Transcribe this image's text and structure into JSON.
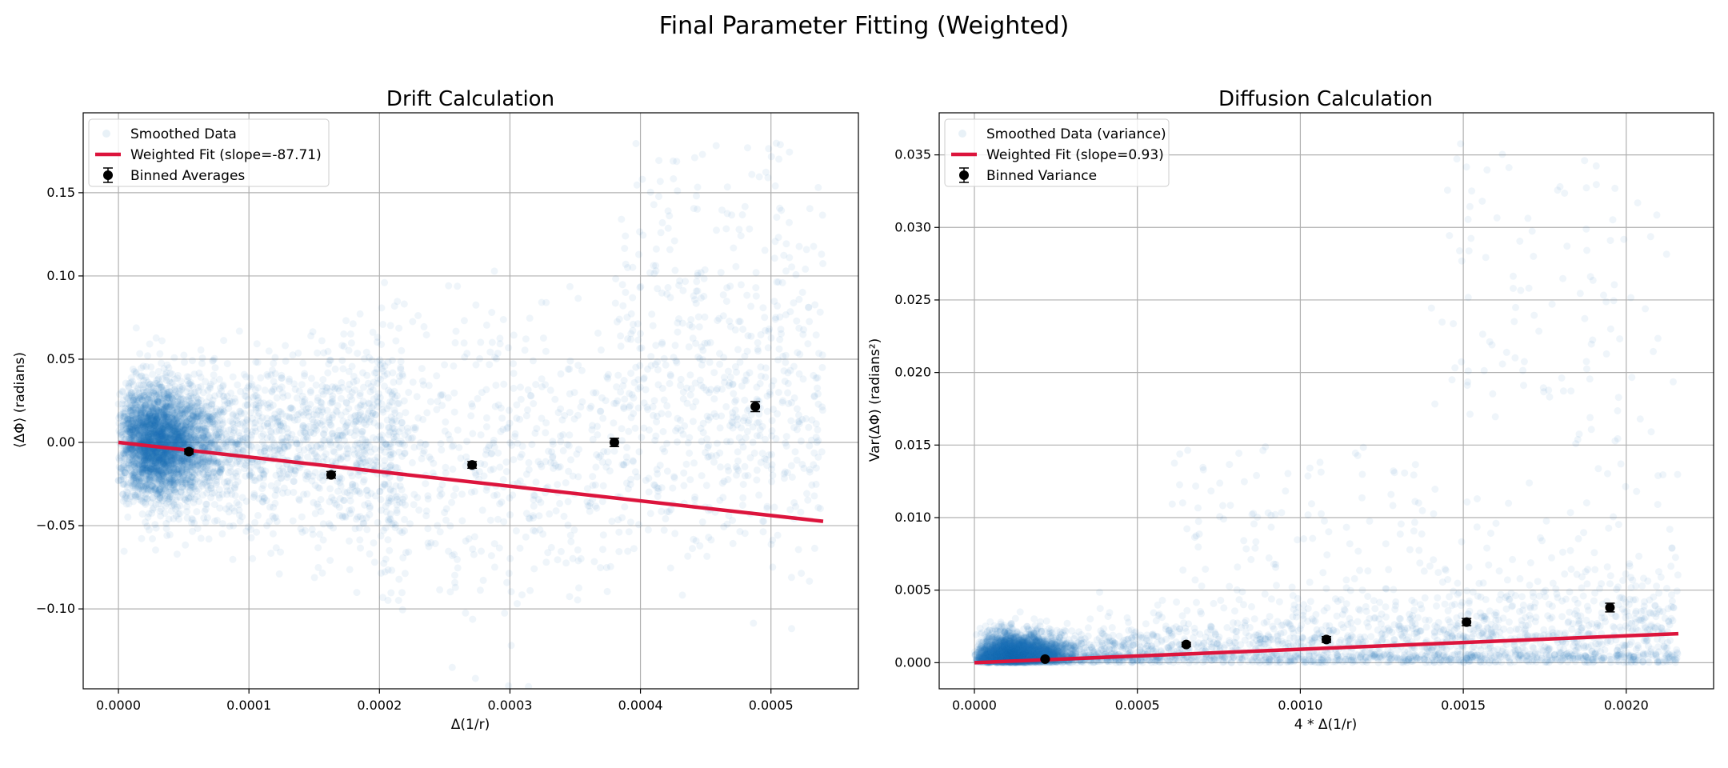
{
  "figure": {
    "suptitle": "Final Parameter Fitting (Weighted)"
  },
  "colors": {
    "scatter": "#1f77b4",
    "fit": "#dc143c",
    "binned": "#000000",
    "grid": "#b0b0b0"
  },
  "chart_data": [
    {
      "type": "scatter",
      "title": "Drift Calculation",
      "xlabel": "Δ(1/r)",
      "ylabel": "⟨ΔΦ⟩ (radians)",
      "xlim": [
        -2.7e-05,
        0.000567
      ],
      "ylim": [
        -0.148,
        0.198
      ],
      "xticks": [
        0,
        0.0001,
        0.0002,
        0.0003,
        0.0004,
        0.0005
      ],
      "xtick_labels": [
        "0.0000",
        "0.0001",
        "0.0002",
        "0.0003",
        "0.0004",
        "0.0005"
      ],
      "yticks": [
        -0.1,
        -0.05,
        0.0,
        0.05,
        0.1,
        0.15
      ],
      "ytick_labels": [
        "−0.10",
        "−0.05",
        "0.00",
        "0.05",
        "0.10",
        "0.15"
      ],
      "grid": true,
      "legend_position": "upper-left",
      "legend": [
        "Smoothed Data",
        "Weighted Fit (slope=-87.71)",
        "Binned Averages"
      ],
      "series": [
        {
          "name": "Smoothed Data",
          "kind": "scatter-cloud",
          "note": "dense cloud near x=0 spreading with x"
        },
        {
          "name": "Weighted Fit (slope=-87.71)",
          "kind": "line",
          "slope": -87.71,
          "x": [
            0,
            0.00054
          ],
          "y": [
            0,
            -0.0474
          ]
        },
        {
          "name": "Binned Averages",
          "kind": "errorbar",
          "x": [
            5.4e-05,
            0.000163,
            0.000271,
            0.00038,
            0.000488
          ],
          "y": [
            -0.0055,
            -0.0195,
            -0.0135,
            0.0,
            0.0215
          ],
          "yerr": [
            0.0015,
            0.002,
            0.002,
            0.0025,
            0.003
          ]
        }
      ]
    },
    {
      "type": "scatter",
      "title": "Diffusion Calculation",
      "xlabel": "4 * Δ(1/r)",
      "ylabel": "Var(ΔΦ) (radians²)",
      "xlim": [
        -0.000108,
        0.002268
      ],
      "ylim": [
        -0.0018,
        0.0379
      ],
      "xticks": [
        0,
        0.0005,
        0.001,
        0.0015,
        0.002
      ],
      "xtick_labels": [
        "0.0000",
        "0.0005",
        "0.0010",
        "0.0015",
        "0.0020"
      ],
      "yticks": [
        0,
        0.005,
        0.01,
        0.015,
        0.02,
        0.025,
        0.03,
        0.035
      ],
      "ytick_labels": [
        "0.000",
        "0.005",
        "0.010",
        "0.015",
        "0.020",
        "0.025",
        "0.030",
        "0.035"
      ],
      "grid": true,
      "legend_position": "upper-left",
      "legend": [
        "Smoothed Data (variance)",
        "Weighted Fit (slope=0.93)",
        "Binned Variance"
      ],
      "series": [
        {
          "name": "Smoothed Data (variance)",
          "kind": "scatter-cloud",
          "note": "dense near zero, sparse high values at large x"
        },
        {
          "name": "Weighted Fit (slope=0.93)",
          "kind": "line",
          "slope": 0.93,
          "x": [
            0,
            0.00216
          ],
          "y": [
            0,
            0.002
          ]
        },
        {
          "name": "Binned Variance",
          "kind": "errorbar",
          "x": [
            0.000217,
            0.00065,
            0.00108,
            0.00151,
            0.00195
          ],
          "y": [
            0.00025,
            0.00125,
            0.0016,
            0.0028,
            0.0038
          ],
          "yerr": [
            5e-05,
            0.00015,
            0.0002,
            0.00025,
            0.0003
          ]
        }
      ]
    }
  ]
}
